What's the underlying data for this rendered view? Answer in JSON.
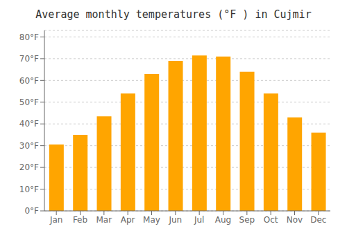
{
  "chart_data": {
    "type": "bar",
    "title": "Average monthly temperatures (°F ) in Cujmir",
    "categories": [
      "Jan",
      "Feb",
      "Mar",
      "Apr",
      "May",
      "Jun",
      "Jul",
      "Aug",
      "Sep",
      "Oct",
      "Nov",
      "Dec"
    ],
    "values": [
      30.5,
      35,
      43.5,
      54,
      63,
      69,
      71.5,
      71,
      64,
      54,
      43,
      36
    ],
    "color": "#FFA500",
    "ylim": [
      0,
      83
    ],
    "yticks": [
      {
        "value": 0,
        "label": "0°F"
      },
      {
        "value": 10,
        "label": "10°F"
      },
      {
        "value": 20,
        "label": "20°F"
      },
      {
        "value": 30,
        "label": "30°F"
      },
      {
        "value": 40,
        "label": "40°F"
      },
      {
        "value": 50,
        "label": "50°F"
      },
      {
        "value": 60,
        "label": "60°F"
      },
      {
        "value": 70,
        "label": "70°F"
      },
      {
        "value": 80,
        "label": "80°F"
      }
    ],
    "grid": true
  }
}
